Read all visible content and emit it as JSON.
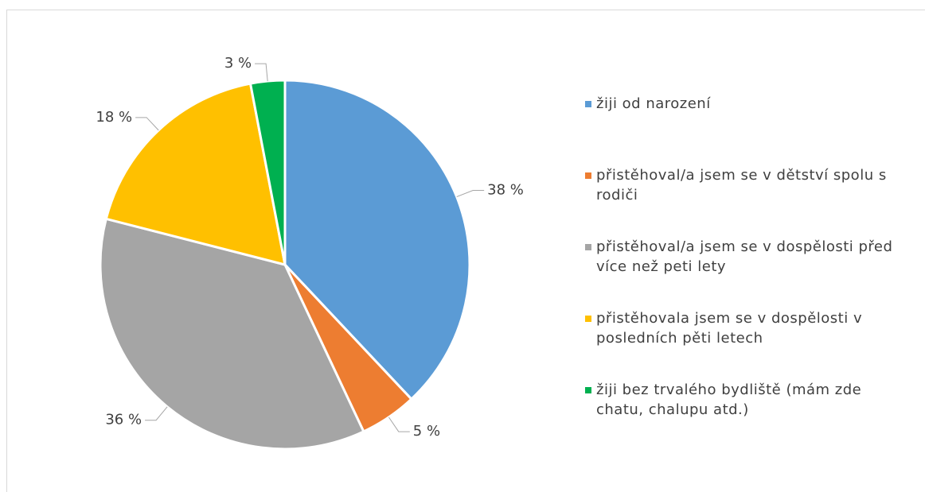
{
  "chart_data": {
    "type": "pie",
    "categories": [
      "žiji od narození",
      "přistěhoval/a jsem se v dětství spolu s rodiči",
      "přistěhoval/a jsem se v dospělosti před více než peti lety",
      "přistěhovala jsem se v dospělosti v posledních pěti letech",
      "žiji bez trvalého bydliště (mám zde chatu, chalupu atd.)"
    ],
    "values": [
      38,
      5,
      36,
      18,
      3
    ],
    "value_labels": [
      "38 %",
      "5 %",
      "36 %",
      "18 %",
      "3 %"
    ],
    "colors": [
      "#5b9bd5",
      "#ed7d31",
      "#a5a5a5",
      "#ffc000",
      "#00b050"
    ],
    "legend": "right"
  }
}
